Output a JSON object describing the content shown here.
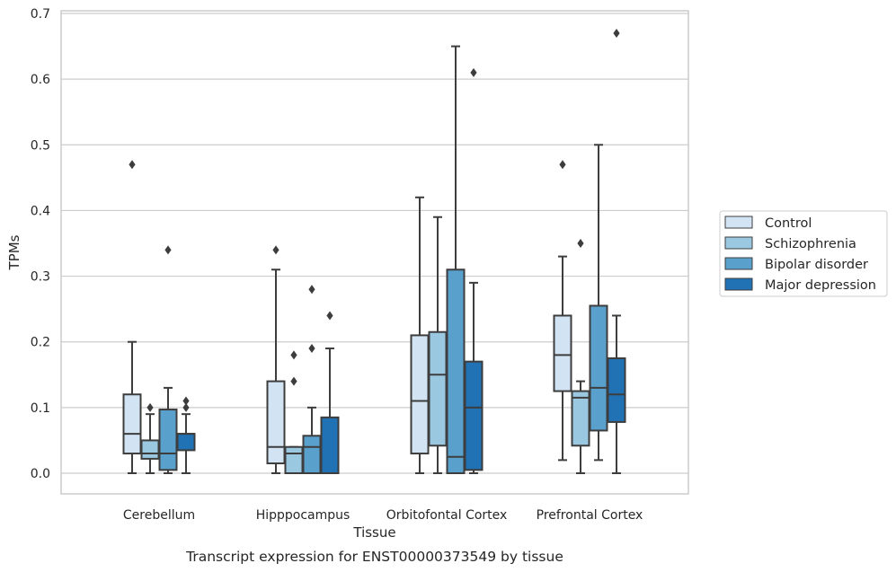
{
  "chart_data": {
    "type": "box",
    "title": "Transcript expression for ENST00000373549 by tissue",
    "xlabel": "Tissue",
    "ylabel": "TPMs",
    "ylim": [
      -0.032,
      0.705
    ],
    "yticks": [
      "0.0",
      "0.1",
      "0.2",
      "0.3",
      "0.4",
      "0.5",
      "0.6",
      "0.7"
    ],
    "ytick_values": [
      0.0,
      0.1,
      0.2,
      0.3,
      0.4,
      0.5,
      0.6,
      0.7
    ],
    "grid": true,
    "legend_position": "right",
    "categories": [
      "Cerebellum",
      "Hipppocampus",
      "Orbitofontal Cortex",
      "Prefrontal Cortex"
    ],
    "series": [
      {
        "name": "Control",
        "color": "#d2e3f3",
        "boxes": [
          {
            "whislo": 0.0,
            "q1": 0.03,
            "med": 0.06,
            "q3": 0.12,
            "whishi": 0.2,
            "fliers": [
              0.47
            ]
          },
          {
            "whislo": 0.0,
            "q1": 0.015,
            "med": 0.04,
            "q3": 0.14,
            "whishi": 0.31,
            "fliers": [
              0.34
            ]
          },
          {
            "whislo": 0.0,
            "q1": 0.03,
            "med": 0.11,
            "q3": 0.21,
            "whishi": 0.42,
            "fliers": []
          },
          {
            "whislo": 0.02,
            "q1": 0.125,
            "med": 0.18,
            "q3": 0.24,
            "whishi": 0.33,
            "fliers": [
              0.47
            ]
          }
        ]
      },
      {
        "name": "Schizophrenia",
        "color": "#9ac8e0",
        "boxes": [
          {
            "whislo": 0.0,
            "q1": 0.022,
            "med": 0.03,
            "q3": 0.05,
            "whishi": 0.09,
            "fliers": [
              0.1
            ]
          },
          {
            "whislo": 0.0,
            "q1": 0.0,
            "med": 0.03,
            "q3": 0.04,
            "whishi": 0.04,
            "fliers": [
              0.14,
              0.18
            ]
          },
          {
            "whislo": 0.0,
            "q1": 0.042,
            "med": 0.15,
            "q3": 0.215,
            "whishi": 0.39,
            "fliers": []
          },
          {
            "whislo": 0.0,
            "q1": 0.042,
            "med": 0.115,
            "q3": 0.125,
            "whishi": 0.14,
            "fliers": [
              0.35
            ]
          }
        ]
      },
      {
        "name": "Bipolar disorder",
        "color": "#5aa0cd",
        "boxes": [
          {
            "whislo": 0.0,
            "q1": 0.005,
            "med": 0.03,
            "q3": 0.097,
            "whishi": 0.13,
            "fliers": [
              0.34
            ]
          },
          {
            "whislo": 0.0,
            "q1": 0.0,
            "med": 0.04,
            "q3": 0.057,
            "whishi": 0.1,
            "fliers": [
              0.19,
              0.28
            ]
          },
          {
            "whislo": 0.0,
            "q1": 0.0,
            "med": 0.025,
            "q3": 0.31,
            "whishi": 0.65,
            "fliers": []
          },
          {
            "whislo": 0.02,
            "q1": 0.065,
            "med": 0.13,
            "q3": 0.255,
            "whishi": 0.5,
            "fliers": []
          }
        ]
      },
      {
        "name": "Major depression",
        "color": "#2171b5",
        "boxes": [
          {
            "whislo": 0.0,
            "q1": 0.035,
            "med": 0.06,
            "q3": 0.06,
            "whishi": 0.09,
            "fliers": [
              0.1,
              0.11
            ]
          },
          {
            "whislo": 0.0,
            "q1": 0.0,
            "med": 0.0,
            "q3": 0.085,
            "whishi": 0.19,
            "fliers": [
              0.24
            ]
          },
          {
            "whislo": 0.0,
            "q1": 0.005,
            "med": 0.1,
            "q3": 0.17,
            "whishi": 0.29,
            "fliers": [
              0.61
            ]
          },
          {
            "whislo": 0.0,
            "q1": 0.078,
            "med": 0.12,
            "q3": 0.175,
            "whishi": 0.24,
            "fliers": [
              0.67
            ]
          }
        ]
      }
    ]
  }
}
